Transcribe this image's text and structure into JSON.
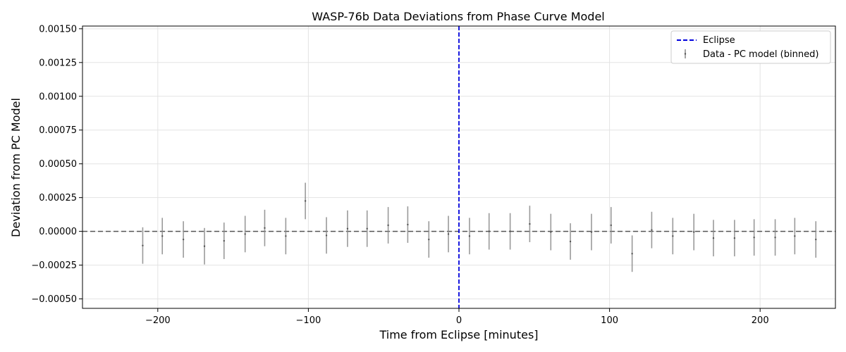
{
  "chart_data": {
    "type": "scatter",
    "title": "WASP-76b Data Deviations from Phase Curve Model",
    "xlabel": "Time from Eclipse [minutes]",
    "ylabel": "Deviation from PC Model",
    "xlim": [
      -250,
      250
    ],
    "ylim": [
      -0.00057,
      0.00152
    ],
    "xticks": [
      -200,
      -100,
      0,
      100,
      200
    ],
    "xtick_labels": [
      "−200",
      "−100",
      "0",
      "100",
      "200"
    ],
    "yticks": [
      -0.0005,
      -0.00025,
      0,
      0.00025,
      0.0005,
      0.00075,
      0.001,
      0.00125,
      0.0015
    ],
    "ytick_labels": [
      "−0.00050",
      "−0.00025",
      "0.00000",
      "0.00025",
      "0.00050",
      "0.00075",
      "0.00100",
      "0.00125",
      "0.00150"
    ],
    "grid": true,
    "legend_position": "top-right",
    "zero_line": {
      "y": 0,
      "color": "#555555",
      "style": "dashed"
    },
    "eclipse_line": {
      "x": 0,
      "name": "Eclipse",
      "color": "#0000dd",
      "style": "dashed"
    },
    "series": [
      {
        "name": "Data - PC model (binned)",
        "color": "#888888",
        "x": [
          -210,
          -197,
          -183,
          -169,
          -156,
          -142,
          -129,
          -115,
          -102,
          -88,
          -74,
          -61,
          -47,
          -34,
          -20,
          -7,
          7,
          20,
          34,
          47,
          61,
          74,
          88,
          101,
          115,
          128,
          142,
          156,
          169,
          183,
          196,
          210,
          223,
          237
        ],
        "y": [
          -0.000105,
          -3.5e-05,
          -6e-05,
          -0.00011,
          -7e-05,
          -2e-05,
          2.5e-05,
          -3.5e-05,
          0.000225,
          -3e-05,
          2e-05,
          2e-05,
          4.5e-05,
          5e-05,
          -6e-05,
          -2e-05,
          -3.5e-05,
          0.0,
          0.0,
          5.5e-05,
          -5e-06,
          -7.5e-05,
          -5e-06,
          4.5e-05,
          -0.000165,
          1e-05,
          -3.5e-05,
          -5e-06,
          -5e-05,
          -5e-05,
          -4.5e-05,
          -4.5e-05,
          -3.5e-05,
          -6e-05
        ],
        "err": [
          0.000135,
          0.000135,
          0.000135,
          0.000135,
          0.000135,
          0.000135,
          0.000135,
          0.000135,
          0.000135,
          0.000135,
          0.000135,
          0.000135,
          0.000135,
          0.000135,
          0.000135,
          0.000135,
          0.000135,
          0.000135,
          0.000135,
          0.000135,
          0.000135,
          0.000135,
          0.000135,
          0.000135,
          0.000135,
          0.000135,
          0.000135,
          0.000135,
          0.000135,
          0.000135,
          0.000135,
          0.000135,
          0.000135,
          0.000135
        ]
      }
    ]
  }
}
